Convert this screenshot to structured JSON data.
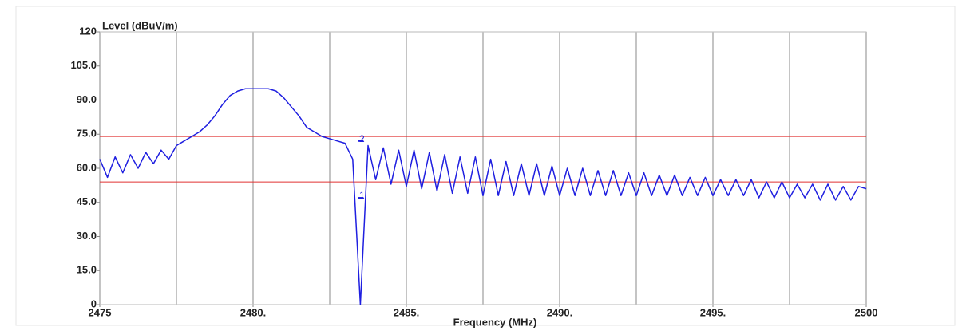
{
  "chart_data": {
    "type": "line",
    "y_label": "Level (dBuV/m)",
    "x_label": "Frequency (MHz)",
    "xlim": [
      2475,
      2500
    ],
    "ylim": [
      0,
      120
    ],
    "yticks": [
      0,
      {
        "value": 15,
        "label": "15.0"
      },
      {
        "value": 30,
        "label": "30.0"
      },
      {
        "value": 45,
        "label": "45.0"
      },
      {
        "value": 60,
        "label": "60.0"
      },
      {
        "value": 75,
        "label": "75.0"
      },
      {
        "value": 90,
        "label": "90.0"
      },
      {
        "value": 105,
        "label": "105.0"
      },
      120
    ],
    "xticks": [
      2475,
      {
        "value": 2480,
        "label": "2480."
      },
      {
        "value": 2485,
        "label": "2485."
      },
      {
        "value": 2490,
        "label": "2490."
      },
      {
        "value": 2495,
        "label": "2495."
      },
      2500
    ],
    "xgrid": [
      2475,
      2477.5,
      2480,
      2482.5,
      2485,
      2487.5,
      2490,
      2492.5,
      2495,
      2497.5,
      2500
    ],
    "grid": true,
    "limit_lines": [
      {
        "value": 74,
        "color": "#e03030"
      },
      {
        "value": 54,
        "color": "#e03030"
      }
    ],
    "annotations": [
      {
        "label": "1",
        "x": 2483.5,
        "y": 47
      },
      {
        "label": "2",
        "x": 2483.5,
        "y": 72
      }
    ],
    "series": [
      {
        "color": "#1f1fe0",
        "x": [
          2475,
          2475.25,
          2475.5,
          2475.75,
          2476,
          2476.25,
          2476.5,
          2476.75,
          2477,
          2477.25,
          2477.5,
          2477.75,
          2478,
          2478.25,
          2478.5,
          2478.75,
          2479,
          2479.25,
          2479.5,
          2479.75,
          2480,
          2480.25,
          2480.5,
          2480.75,
          2481,
          2481.25,
          2481.5,
          2481.75,
          2482,
          2482.25,
          2482.5,
          2482.75,
          2483,
          2483.25,
          2483.5,
          2483.75,
          2484,
          2484.25,
          2484.5,
          2484.75,
          2485,
          2485.25,
          2485.5,
          2485.75,
          2486,
          2486.25,
          2486.5,
          2486.75,
          2487,
          2487.25,
          2487.5,
          2487.75,
          2488,
          2488.25,
          2488.5,
          2488.75,
          2489,
          2489.25,
          2489.5,
          2489.75,
          2490,
          2490.25,
          2490.5,
          2490.75,
          2491,
          2491.25,
          2491.5,
          2491.75,
          2492,
          2492.25,
          2492.5,
          2492.75,
          2493,
          2493.25,
          2493.5,
          2493.75,
          2494,
          2494.25,
          2494.5,
          2494.75,
          2495,
          2495.25,
          2495.5,
          2495.75,
          2496,
          2496.25,
          2496.5,
          2496.75,
          2497,
          2497.25,
          2497.5,
          2497.75,
          2498,
          2498.25,
          2498.5,
          2498.75,
          2499,
          2499.25,
          2499.5,
          2499.75,
          2500
        ],
        "values": [
          64,
          56,
          65,
          58,
          66,
          60,
          67,
          62,
          68,
          64,
          70,
          72,
          74,
          76,
          79,
          83,
          88,
          92,
          94,
          95,
          95,
          95,
          95,
          94,
          91,
          87,
          83,
          78,
          76,
          74,
          73,
          72,
          71,
          64,
          0,
          70,
          55,
          69,
          53,
          68,
          52,
          68,
          51,
          67,
          50,
          66,
          49,
          65,
          49,
          65,
          48,
          64,
          48,
          63,
          48,
          62,
          48,
          62,
          48,
          61,
          48,
          60,
          48,
          60,
          48,
          59,
          48,
          59,
          48,
          58,
          48,
          58,
          48,
          57,
          48,
          57,
          48,
          56,
          48,
          56,
          48,
          55,
          48,
          55,
          48,
          55,
          47,
          54,
          47,
          54,
          47,
          53,
          47,
          53,
          46,
          53,
          46,
          52,
          46,
          52,
          51
        ]
      }
    ]
  }
}
